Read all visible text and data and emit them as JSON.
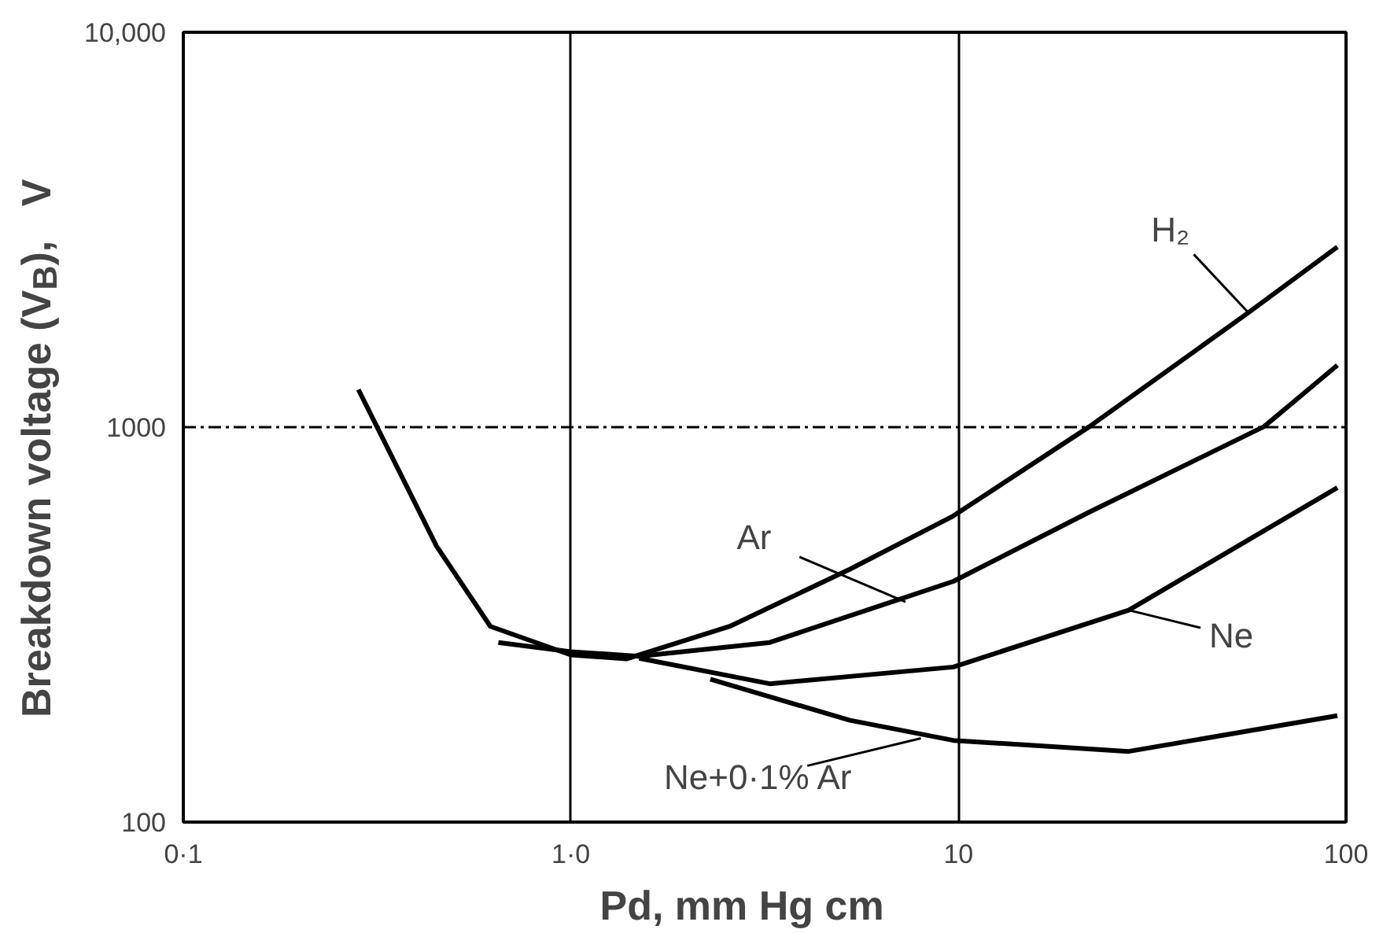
{
  "chart_data": {
    "type": "line",
    "xlabel": "Pd,     mm Hg cm",
    "ylabel": "Breakdown voltage (V$_{B}$),   V",
    "log": "xy",
    "grid": "x",
    "marker": "none",
    "line_style": "solid",
    "xlim": [
      0.1,
      100
    ],
    "ylim": [
      100,
      10000
    ],
    "xticks": [
      {
        "value": 0.1,
        "label": "0·1"
      },
      {
        "value": 1,
        "label": "1·0"
      },
      10,
      100
    ],
    "yticks": [
      100,
      1000,
      {
        "value": 10000,
        "label": "10,000"
      }
    ],
    "series": [
      {
        "color": "#000000",
        "x": [
          0.283,
          0.45,
          0.62,
          1.0,
          1.39,
          2.57,
          5.25,
          9.7,
          21.8,
          56,
          95
        ],
        "values": [
          1245,
          500,
          313,
          265,
          259,
          313,
          437,
          596,
          1004,
          1950,
          2860
        ]
      },
      {
        "color": "#000000",
        "x": [
          0.65,
          1.0,
          1.5,
          3.26,
          9.7,
          21.8,
          61.5,
          95
        ],
        "values": [
          285,
          270,
          263,
          285,
          407,
          610,
          1004,
          1435
        ]
      },
      {
        "color": "#000000",
        "x": [
          1.5,
          3.26,
          9.7,
          27.5,
          95
        ],
        "values": [
          260,
          224,
          247,
          344,
          703
        ]
      },
      {
        "color": "#000000",
        "x": [
          2.29,
          5.25,
          9.7,
          27.5,
          95
        ],
        "values": [
          230,
          181,
          161,
          151,
          186
        ]
      }
    ],
    "ref_lines": [
      {
        "axis": "y",
        "value": 1000,
        "label": null,
        "color": "#000000",
        "line_style": "dashdot"
      }
    ],
    "annotations": [
      {
        "text": "H₂",
        "x": 56,
        "y": 1950
      },
      {
        "text": "Ar",
        "x": 7.3,
        "y": 361
      },
      {
        "text": "Ne",
        "x": 27.5,
        "y": 344
      },
      {
        "text": "Ne+0·1% Ar",
        "x": 8.0,
        "y": 163
      }
    ]
  }
}
